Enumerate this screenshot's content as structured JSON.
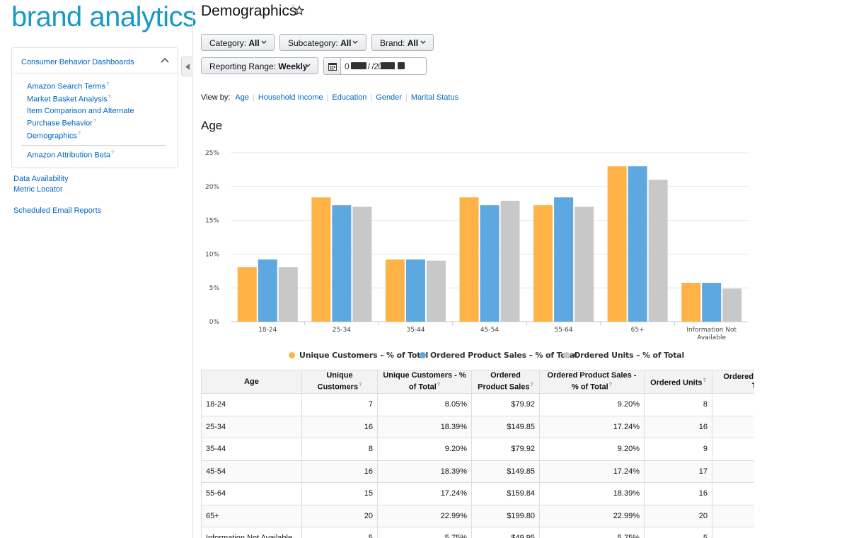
{
  "logo": "brand analytics",
  "sidebar": {
    "panel_title": "Consumer Behavior Dashboards",
    "dashboards": [
      "Amazon Search Terms",
      "Market Basket Analysis",
      "Item Comparison and Alternate",
      "Purchase Behavior",
      "Demographics"
    ],
    "attribution": "Amazon Attribution Beta",
    "data_availability": "Data Availability",
    "metric_locator": "Metric Locator",
    "scheduled_reports": "Scheduled Email Reports"
  },
  "header": {
    "title": "Demographics"
  },
  "filters": {
    "category": {
      "label": "Category:",
      "value": "All"
    },
    "subcategory": {
      "label": "Subcategory:",
      "value": "All"
    },
    "brand": {
      "label": "Brand:",
      "value": "All"
    },
    "reporting_range": {
      "label": "Reporting Range:",
      "value": "Weekly"
    },
    "date": "0 /  /20    /   /20"
  },
  "view_by": {
    "label": "View by:",
    "options": [
      "Age",
      "Household Income",
      "Education",
      "Gender",
      "Marital Status"
    ]
  },
  "section_title": "Age",
  "colors": {
    "unique_customers": "#ffb347",
    "ordered_sales": "#5ea8e2",
    "ordered_units": "#c8c8c8",
    "link": "#0066c0"
  },
  "chart_data": {
    "type": "bar",
    "categories": [
      "18-24",
      "25-34",
      "35-44",
      "45-54",
      "55-64",
      "65+",
      "Information Not Available"
    ],
    "series": [
      {
        "name": "Unique Customers - % of Total",
        "color": "#ffb347",
        "values": [
          8.05,
          18.39,
          9.2,
          18.39,
          17.24,
          22.99,
          5.75
        ]
      },
      {
        "name": "Ordered Product Sales - % of Total",
        "color": "#5ea8e2",
        "values": [
          9.2,
          17.24,
          9.2,
          17.24,
          18.39,
          22.99,
          5.75
        ]
      },
      {
        "name": "Ordered Units - % of Total",
        "color": "#c8c8c8",
        "values": [
          8.05,
          16.99,
          9.03,
          17.89,
          16.99,
          20.99,
          4.89
        ]
      }
    ],
    "yticks": [
      "0%",
      "5%",
      "10%",
      "15%",
      "20%",
      "25%"
    ],
    "ylim": [
      0,
      25
    ],
    "grid": true,
    "legend": "bottom"
  },
  "legend": [
    "Unique Customers – % of Total",
    "Ordered Product Sales – % of Total",
    "Ordered Units – % of Total"
  ],
  "table": {
    "headers": [
      "Age",
      "Unique Customers",
      "Unique Customers - % of Total",
      "Ordered Product Sales",
      "Ordered Product Sales - % of Total",
      "Ordered Units",
      "Ordered Units - % of Total"
    ],
    "rows": [
      [
        "18-24",
        "7",
        "8.05%",
        "$79.92",
        "9.20%",
        "8",
        ""
      ],
      [
        "25-34",
        "16",
        "18.39%",
        "$149.85",
        "17.24%",
        "16",
        ""
      ],
      [
        "35-44",
        "8",
        "9.20%",
        "$79.92",
        "9.20%",
        "9",
        ""
      ],
      [
        "45-54",
        "16",
        "18.39%",
        "$149.85",
        "17.24%",
        "17",
        ""
      ],
      [
        "55-64",
        "15",
        "17.24%",
        "$159.84",
        "18.39%",
        "16",
        ""
      ],
      [
        "65+",
        "20",
        "22.99%",
        "$199.80",
        "22.99%",
        "20",
        ""
      ],
      [
        "Information Not Available",
        "5",
        "5.75%",
        "$49.95",
        "5.75%",
        "5",
        ""
      ]
    ]
  }
}
